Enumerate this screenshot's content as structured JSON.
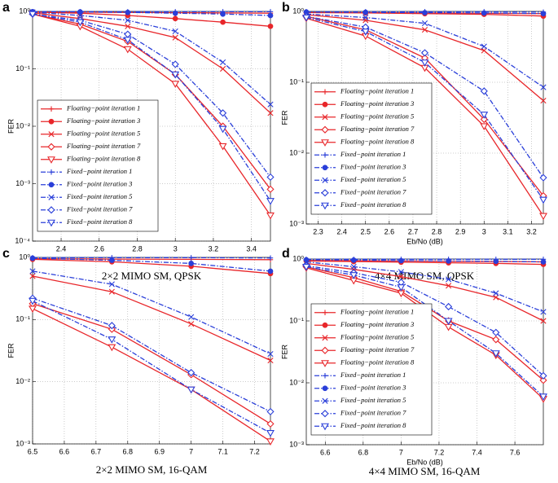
{
  "chart_data": [
    {
      "type": "line",
      "label": "a",
      "caption": "2×2 MIMO SM,  QPSK",
      "ylabel": "FER",
      "log_y": true,
      "grid": true,
      "legend": "lower left",
      "x": [
        2.25,
        2.5,
        2.75,
        3,
        3.25,
        3.5
      ],
      "xlim": [
        2.25,
        3.5
      ],
      "xticks": [
        2.4,
        2.6,
        2.8,
        3,
        3.2,
        3.4
      ],
      "ylim": [
        0.0001,
        1
      ],
      "yticks": [
        {
          "value": 1,
          "label": "10⁰"
        },
        {
          "value": 0.1,
          "label": "10⁻¹"
        },
        {
          "value": 0.01,
          "label": "10⁻²"
        },
        {
          "value": 0.001,
          "label": "10⁻³"
        },
        {
          "value": 0.0001,
          "label": "10⁻⁴"
        }
      ],
      "series": [
        {
          "name": "Floating−point iteration 1",
          "color": "#e8262a",
          "linestyle": "solid",
          "marker": "plus",
          "values": [
            0.98,
            0.97,
            0.96,
            0.95,
            0.94,
            0.93
          ]
        },
        {
          "name": "Floating−point iteration 3",
          "color": "#e8262a",
          "linestyle": "solid",
          "marker": "circle",
          "values": [
            0.97,
            0.93,
            0.85,
            0.75,
            0.65,
            0.55
          ]
        },
        {
          "name": "Floating−point iteration 5",
          "color": "#e8262a",
          "linestyle": "solid",
          "marker": "x",
          "values": [
            0.95,
            0.75,
            0.55,
            0.35,
            0.1,
            0.017
          ]
        },
        {
          "name": "Floating−point iteration 7",
          "color": "#e8262a",
          "linestyle": "solid",
          "marker": "diamond",
          "values": [
            0.9,
            0.6,
            0.3,
            0.08,
            0.01,
            0.0008
          ]
        },
        {
          "name": "Floating−point iteration 8",
          "color": "#e8262a",
          "linestyle": "solid",
          "marker": "triangle-down",
          "values": [
            0.9,
            0.55,
            0.22,
            0.055,
            0.0045,
            0.00028
          ]
        },
        {
          "name": "Fixed−point iteration 1",
          "color": "#2a3fd9",
          "linestyle": "dashdot",
          "marker": "plus",
          "values": [
            0.99,
            0.99,
            0.99,
            0.99,
            0.99,
            0.99
          ]
        },
        {
          "name": "Fixed−point iteration 3",
          "color": "#2a3fd9",
          "linestyle": "dashdot",
          "marker": "circle",
          "values": [
            0.99,
            0.98,
            0.96,
            0.93,
            0.9,
            0.85
          ]
        },
        {
          "name": "Fixed−point iteration 5",
          "color": "#2a3fd9",
          "linestyle": "dashdot",
          "marker": "x",
          "values": [
            0.97,
            0.85,
            0.7,
            0.45,
            0.13,
            0.024
          ]
        },
        {
          "name": "Fixed−point iteration 7",
          "color": "#2a3fd9",
          "linestyle": "dashdot",
          "marker": "diamond",
          "values": [
            0.9,
            0.7,
            0.4,
            0.12,
            0.017,
            0.0013
          ]
        },
        {
          "name": "Fixed−point iteration 8",
          "color": "#2a3fd9",
          "linestyle": "dashdot",
          "marker": "triangle-down",
          "values": [
            0.9,
            0.65,
            0.32,
            0.08,
            0.009,
            0.0005
          ]
        }
      ]
    },
    {
      "type": "line",
      "label": "b",
      "caption": "4×4 MIMO SM, QPSK",
      "xlabel": "Eb/No (dB)",
      "ylabel": "FER",
      "log_y": true,
      "grid": true,
      "legend": "lower left",
      "x": [
        2.25,
        2.5,
        2.75,
        3,
        3.25
      ],
      "xlim": [
        2.25,
        3.25
      ],
      "xticks": [
        2.3,
        2.4,
        2.5,
        2.6,
        2.7,
        2.8,
        2.9,
        3,
        3.1,
        3.2
      ],
      "ylim": [
        0.001,
        1
      ],
      "yticks": [
        {
          "value": 1,
          "label": "10⁰"
        },
        {
          "value": 0.1,
          "label": "10⁻¹"
        },
        {
          "value": 0.01,
          "label": "10⁻²"
        },
        {
          "value": 0.001,
          "label": "10⁻³"
        }
      ],
      "series": [
        {
          "name": "Floating−point iteration 1",
          "color": "#e8262a",
          "linestyle": "solid",
          "marker": "plus",
          "values": [
            0.97,
            0.96,
            0.95,
            0.94,
            0.93
          ]
        },
        {
          "name": "Floating−point iteration 3",
          "color": "#e8262a",
          "linestyle": "solid",
          "marker": "circle",
          "values": [
            0.96,
            0.95,
            0.93,
            0.91,
            0.86
          ]
        },
        {
          "name": "Floating−point iteration 5",
          "color": "#e8262a",
          "linestyle": "solid",
          "marker": "x",
          "values": [
            0.9,
            0.75,
            0.55,
            0.28,
            0.055
          ]
        },
        {
          "name": "Floating−point iteration 7",
          "color": "#e8262a",
          "linestyle": "solid",
          "marker": "diamond",
          "values": [
            0.85,
            0.55,
            0.22,
            0.03,
            0.0025
          ]
        },
        {
          "name": "Floating−point iteration 8",
          "color": "#e8262a",
          "linestyle": "solid",
          "marker": "triangle-down",
          "values": [
            0.8,
            0.45,
            0.16,
            0.024,
            0.0013
          ]
        },
        {
          "name": "Fixed−point iteration 1",
          "color": "#2a3fd9",
          "linestyle": "dashdot",
          "marker": "plus",
          "values": [
            0.99,
            0.99,
            0.99,
            0.99,
            0.98
          ]
        },
        {
          "name": "Fixed−point iteration 3",
          "color": "#2a3fd9",
          "linestyle": "dashdot",
          "marker": "circle",
          "values": [
            0.98,
            0.97,
            0.96,
            0.95,
            0.93
          ]
        },
        {
          "name": "Fixed−point iteration 5",
          "color": "#2a3fd9",
          "linestyle": "dashdot",
          "marker": "x",
          "values": [
            0.92,
            0.82,
            0.68,
            0.32,
            0.085
          ]
        },
        {
          "name": "Fixed−point iteration 7",
          "color": "#2a3fd9",
          "linestyle": "dashdot",
          "marker": "diamond",
          "values": [
            0.85,
            0.6,
            0.26,
            0.075,
            0.0045
          ]
        },
        {
          "name": "Fixed−point iteration 8",
          "color": "#2a3fd9",
          "linestyle": "dashdot",
          "marker": "triangle-down",
          "values": [
            0.82,
            0.52,
            0.19,
            0.035,
            0.0022
          ]
        }
      ]
    },
    {
      "type": "line",
      "label": "c",
      "caption": "2×2 MIMO SM, 16-QAM",
      "ylabel": "FER",
      "log_y": true,
      "grid": true,
      "x": [
        6.5,
        6.75,
        7,
        7.25
      ],
      "xlim": [
        6.5,
        7.25
      ],
      "xticks": [
        6.5,
        6.6,
        6.7,
        6.8,
        6.9,
        7,
        7.1,
        7.2
      ],
      "ylim": [
        0.001,
        1
      ],
      "yticks": [
        {
          "value": 1,
          "label": "10⁰"
        },
        {
          "value": 0.1,
          "label": "10⁻¹"
        },
        {
          "value": 0.01,
          "label": "10⁻²"
        },
        {
          "value": 0.001,
          "label": "10⁻³"
        }
      ],
      "series": [
        {
          "name": "Floating−point iteration 1",
          "color": "#e8262a",
          "linestyle": "solid",
          "marker": "plus",
          "values": [
            0.95,
            0.94,
            0.93,
            0.92
          ]
        },
        {
          "name": "Floating−point iteration 3",
          "color": "#e8262a",
          "linestyle": "solid",
          "marker": "circle",
          "values": [
            0.93,
            0.85,
            0.72,
            0.55
          ]
        },
        {
          "name": "Floating−point iteration 5",
          "color": "#e8262a",
          "linestyle": "solid",
          "marker": "x",
          "values": [
            0.5,
            0.28,
            0.085,
            0.022
          ]
        },
        {
          "name": "Floating−point iteration 7",
          "color": "#e8262a",
          "linestyle": "solid",
          "marker": "diamond",
          "values": [
            0.18,
            0.07,
            0.013,
            0.0021
          ]
        },
        {
          "name": "Floating−point iteration 8",
          "color": "#e8262a",
          "linestyle": "solid",
          "marker": "triangle-down",
          "values": [
            0.15,
            0.036,
            0.0075,
            0.0011
          ]
        },
        {
          "name": "Fixed−point iteration 1",
          "color": "#2a3fd9",
          "linestyle": "dashdot",
          "marker": "plus",
          "values": [
            0.99,
            0.99,
            0.99,
            0.98
          ]
        },
        {
          "name": "Fixed−point iteration 3",
          "color": "#2a3fd9",
          "linestyle": "dashdot",
          "marker": "circle",
          "values": [
            0.97,
            0.9,
            0.8,
            0.6
          ]
        },
        {
          "name": "Fixed−point iteration 5",
          "color": "#2a3fd9",
          "linestyle": "dashdot",
          "marker": "x",
          "values": [
            0.6,
            0.37,
            0.11,
            0.028
          ]
        },
        {
          "name": "Fixed−point iteration 7",
          "color": "#2a3fd9",
          "linestyle": "dashdot",
          "marker": "diamond",
          "values": [
            0.22,
            0.08,
            0.014,
            0.0033
          ]
        },
        {
          "name": "Fixed−point iteration 8",
          "color": "#2a3fd9",
          "linestyle": "dashdot",
          "marker": "triangle-down",
          "values": [
            0.2,
            0.048,
            0.0075,
            0.0015
          ]
        }
      ]
    },
    {
      "type": "line",
      "label": "d",
      "caption": "4×4 MIMO SM, 16-QAM",
      "xlabel": "Eb/No (dB)",
      "ylabel": "FER",
      "log_y": true,
      "grid": true,
      "legend": "lower left",
      "x": [
        6.5,
        6.75,
        7,
        7.25,
        7.5,
        7.75
      ],
      "xlim": [
        6.5,
        7.75
      ],
      "xticks": [
        6.6,
        6.8,
        7,
        7.2,
        7.4,
        7.6
      ],
      "ylim": [
        0.001,
        1
      ],
      "yticks": [
        {
          "value": 1,
          "label": "10⁰"
        },
        {
          "value": 0.1,
          "label": "10⁻¹"
        },
        {
          "value": 0.01,
          "label": "10⁻²"
        },
        {
          "value": 0.001,
          "label": "10⁻³"
        }
      ],
      "series": [
        {
          "name": "Floating−point iteration 1",
          "color": "#e8262a",
          "linestyle": "solid",
          "marker": "plus",
          "values": [
            0.95,
            0.94,
            0.93,
            0.92,
            0.91,
            0.9
          ]
        },
        {
          "name": "Floating−point iteration 3",
          "color": "#e8262a",
          "linestyle": "solid",
          "marker": "circle",
          "values": [
            0.93,
            0.91,
            0.89,
            0.87,
            0.85,
            0.82
          ]
        },
        {
          "name": "Floating−point iteration 5",
          "color": "#e8262a",
          "linestyle": "solid",
          "marker": "x",
          "values": [
            0.85,
            0.68,
            0.52,
            0.37,
            0.24,
            0.1
          ]
        },
        {
          "name": "Floating−point iteration 7",
          "color": "#e8262a",
          "linestyle": "solid",
          "marker": "diamond",
          "values": [
            0.75,
            0.5,
            0.3,
            0.1,
            0.05,
            0.011
          ]
        },
        {
          "name": "Floating−point iteration 8",
          "color": "#e8262a",
          "linestyle": "solid",
          "marker": "triangle-down",
          "values": [
            0.72,
            0.45,
            0.28,
            0.08,
            0.028,
            0.0055
          ]
        },
        {
          "name": "Fixed−point iteration 1",
          "color": "#2a3fd9",
          "linestyle": "dashdot",
          "marker": "plus",
          "values": [
            0.99,
            0.99,
            0.99,
            0.99,
            0.99,
            0.99
          ]
        },
        {
          "name": "Fixed−point iteration 3",
          "color": "#2a3fd9",
          "linestyle": "dashdot",
          "marker": "circle",
          "values": [
            0.97,
            0.96,
            0.94,
            0.93,
            0.92,
            0.9
          ]
        },
        {
          "name": "Fixed−point iteration 5",
          "color": "#2a3fd9",
          "linestyle": "dashdot",
          "marker": "x",
          "values": [
            0.9,
            0.75,
            0.62,
            0.47,
            0.28,
            0.14
          ]
        },
        {
          "name": "Fixed−point iteration 7",
          "color": "#2a3fd9",
          "linestyle": "dashdot",
          "marker": "diamond",
          "values": [
            0.78,
            0.6,
            0.42,
            0.17,
            0.065,
            0.013
          ]
        },
        {
          "name": "Fixed−point iteration 8",
          "color": "#2a3fd9",
          "linestyle": "dashdot",
          "marker": "triangle-down",
          "values": [
            0.75,
            0.55,
            0.35,
            0.1,
            0.03,
            0.006
          ]
        }
      ]
    }
  ]
}
